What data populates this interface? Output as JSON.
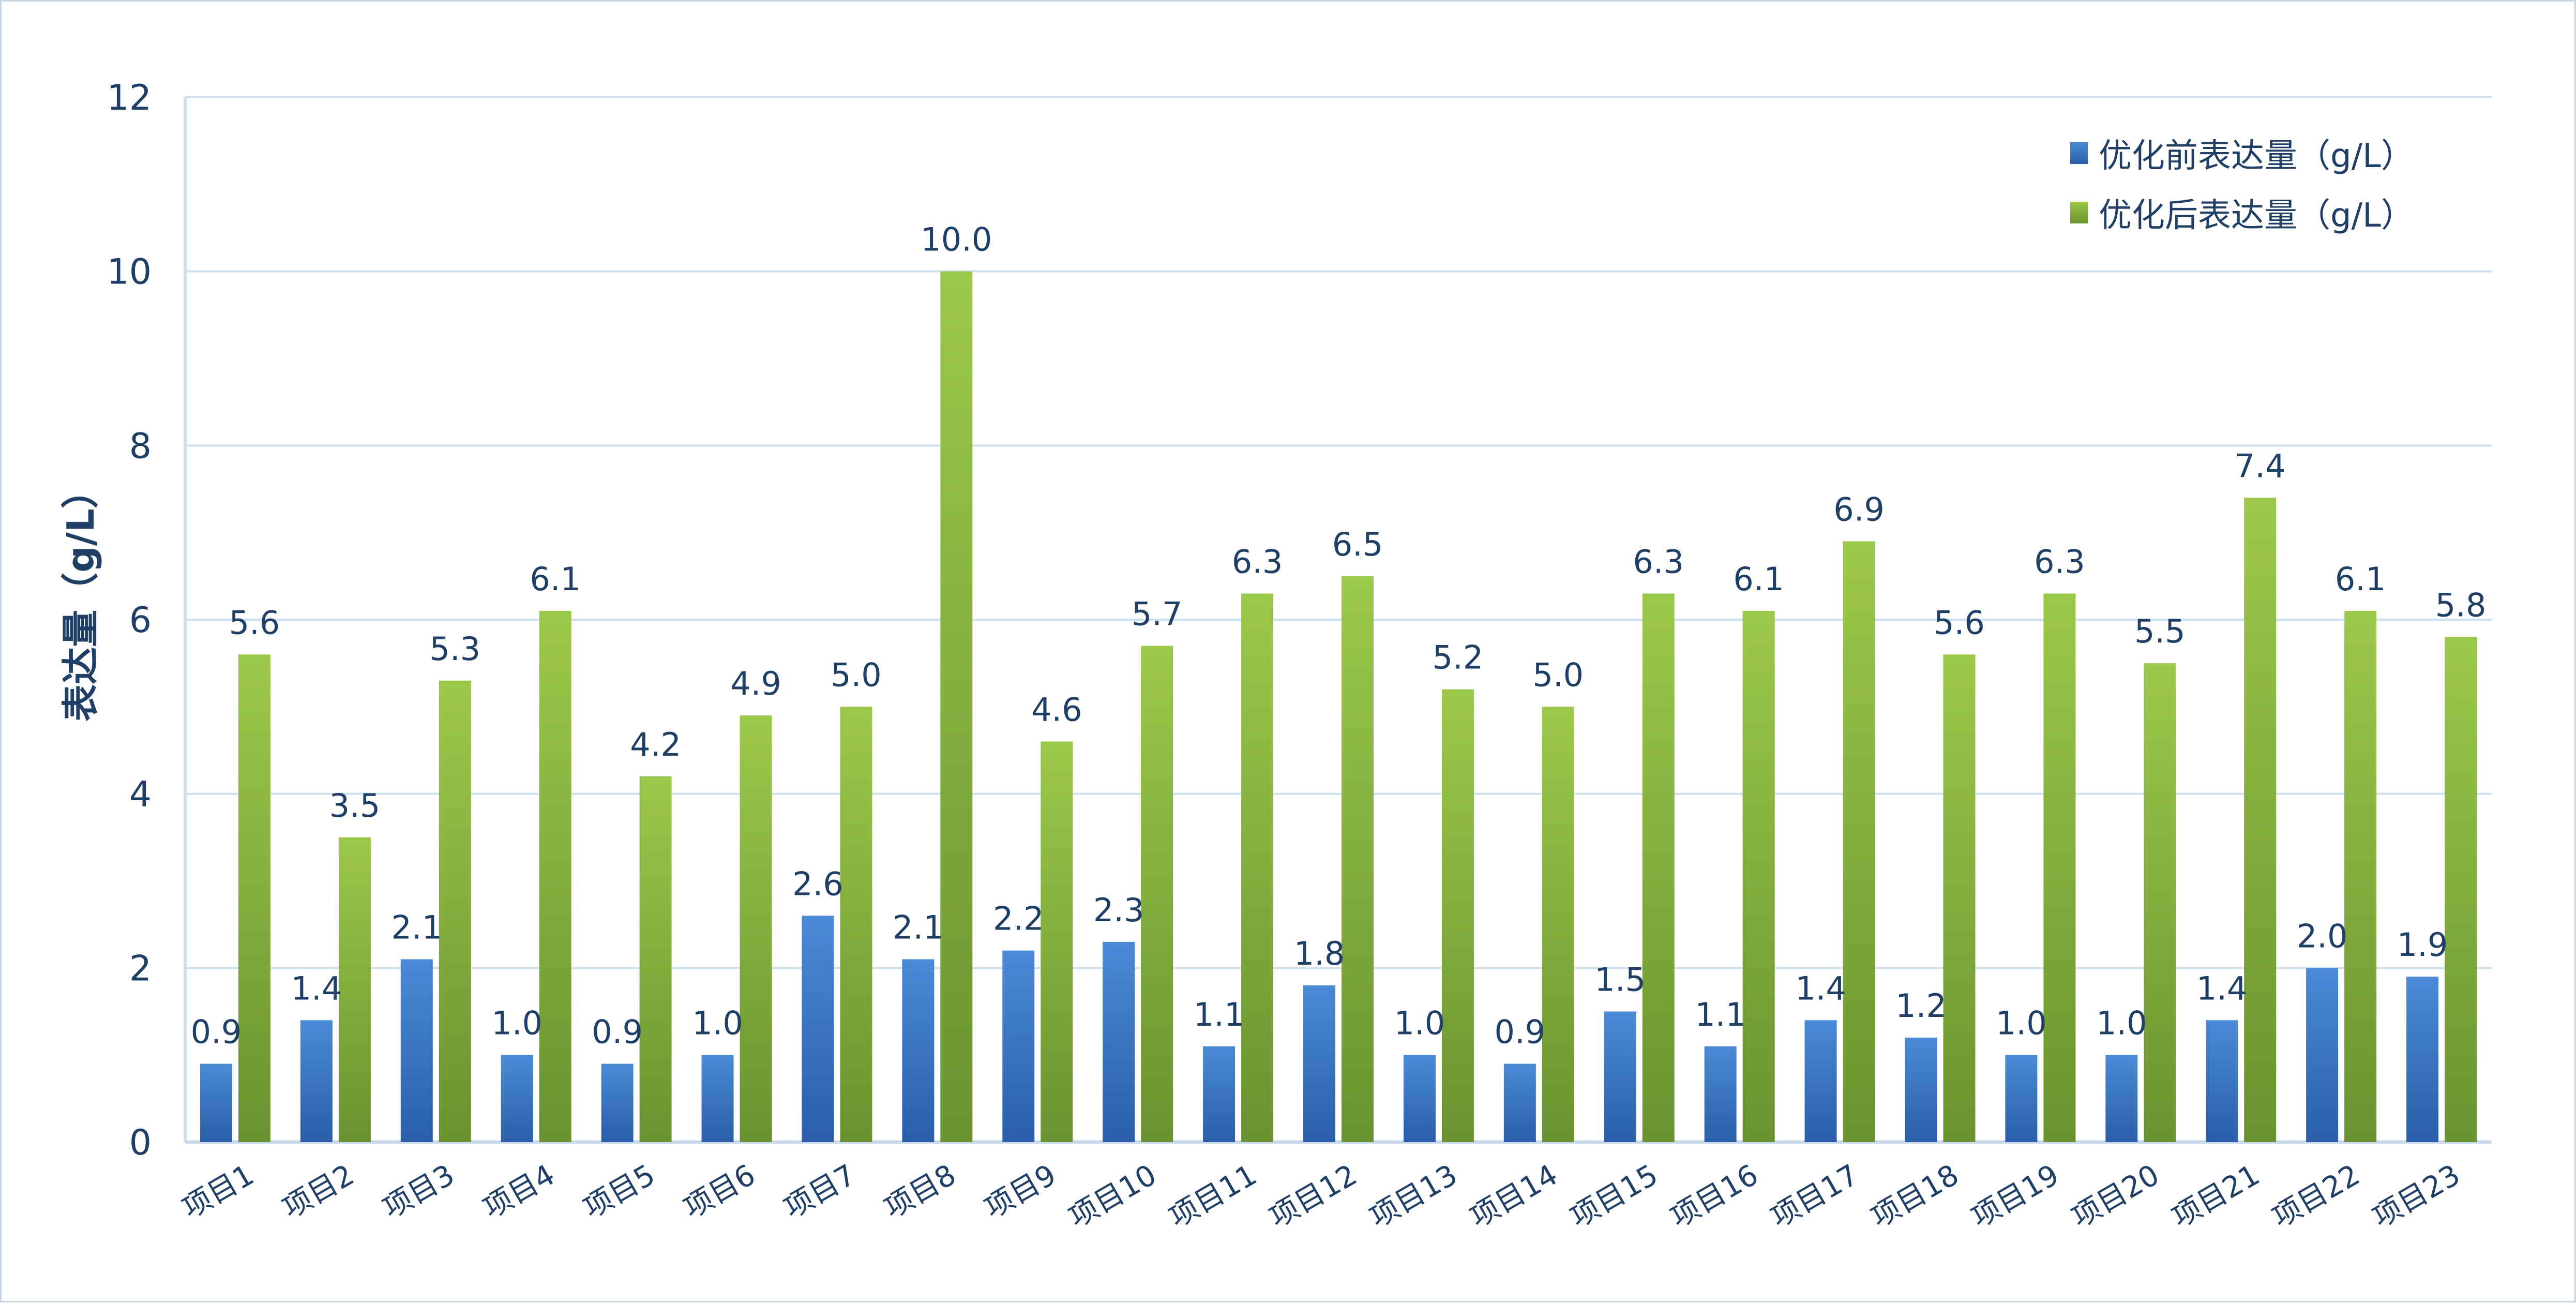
{
  "chart_data": {
    "type": "bar",
    "categories": [
      "项目1",
      "项目2",
      "项目3",
      "项目4",
      "项目5",
      "项目6",
      "项目7",
      "项目8",
      "项目9",
      "项目10",
      "项目11",
      "项目12",
      "项目13",
      "项目14",
      "项目15",
      "项目16",
      "项目17",
      "项目18",
      "项目19",
      "项目20",
      "项目21",
      "项目22",
      "项目23"
    ],
    "series": [
      {
        "name": "优化前表达量（g/L）",
        "color": "#3a78c6",
        "values": [
          0.9,
          1.4,
          2.1,
          1.0,
          0.9,
          1.0,
          2.6,
          2.1,
          2.2,
          2.3,
          1.1,
          1.8,
          1.0,
          0.9,
          1.5,
          1.1,
          1.4,
          1.2,
          1.0,
          1.0,
          1.4,
          2.0,
          1.9
        ]
      },
      {
        "name": "优化后表达量（g/L）",
        "color": "#8ab83d",
        "values": [
          5.6,
          3.5,
          5.3,
          6.1,
          4.2,
          4.9,
          5.0,
          10.0,
          4.6,
          5.7,
          6.3,
          6.5,
          5.2,
          5.0,
          6.3,
          6.1,
          6.9,
          5.6,
          6.3,
          5.5,
          7.4,
          6.1,
          5.8
        ]
      }
    ],
    "title": "",
    "xlabel": "",
    "ylabel": "表达量（g/L）",
    "ylim": [
      0,
      12
    ],
    "yticks": [
      0,
      2,
      4,
      6,
      8,
      10,
      12
    ],
    "grid": true,
    "legend_position": "top-right",
    "data_label_format": "one-decimal"
  }
}
